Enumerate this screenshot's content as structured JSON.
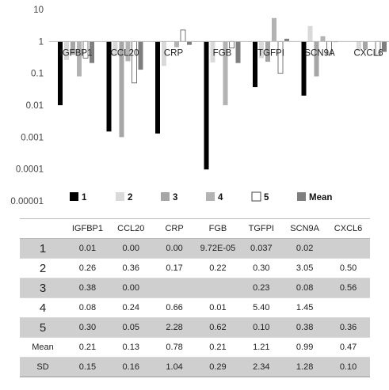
{
  "chart_data": {
    "type": "bar",
    "log_scale": true,
    "baseline": 1,
    "ylim": [
      1e-05,
      10
    ],
    "yticks": [
      "10",
      "1",
      "0.1",
      "0.01",
      "0.001",
      "0.0001",
      "0.00001"
    ],
    "categories": [
      "IGFBP1",
      "CCL20",
      "CRP",
      "FGB",
      "TGFPI",
      "SCN9A",
      "CXCL6"
    ],
    "series": [
      {
        "name": "1",
        "color": "#000000",
        "values": [
          0.01,
          0.0015,
          0.0013,
          9.7e-05,
          0.037,
          0.02,
          null
        ]
      },
      {
        "name": "2",
        "color": "#d9d9d9",
        "values": [
          0.26,
          0.36,
          0.17,
          0.22,
          0.3,
          3.05,
          0.5
        ]
      },
      {
        "name": "3",
        "color": "#a6a6a6",
        "values": [
          0.38,
          0.001,
          null,
          null,
          0.23,
          0.08,
          0.56
        ]
      },
      {
        "name": "4",
        "color": "#b3b3b3",
        "values": [
          0.08,
          0.24,
          0.66,
          0.01,
          5.4,
          1.45,
          null
        ]
      },
      {
        "name": "5",
        "color": "#ffffff",
        "values": [
          0.3,
          0.05,
          2.28,
          0.62,
          0.1,
          0.38,
          0.36
        ]
      },
      {
        "name": "Mean",
        "color": "#7f7f7f",
        "values": [
          0.21,
          0.13,
          0.78,
          0.21,
          1.21,
          0.99,
          0.47
        ]
      }
    ],
    "grid": false,
    "legend_position": "bottom"
  },
  "table": {
    "headers": [
      "",
      "IGFBP1",
      "CCL20",
      "CRP",
      "FGB",
      "TGFPI",
      "SCN9A",
      "CXCL6"
    ],
    "rows": [
      {
        "label": "1",
        "cells": [
          "0.01",
          "0.00",
          "0.00",
          "9.72E-05",
          "0.037",
          "0.02",
          ""
        ]
      },
      {
        "label": "2",
        "cells": [
          "0.26",
          "0.36",
          "0.17",
          "0.22",
          "0.30",
          "3.05",
          "0.50"
        ]
      },
      {
        "label": "3",
        "cells": [
          "0.38",
          "0.00",
          "",
          "",
          "0.23",
          "0.08",
          "0.56"
        ]
      },
      {
        "label": "4",
        "cells": [
          "0.08",
          "0.24",
          "0.66",
          "0.01",
          "5.40",
          "1.45",
          ""
        ]
      },
      {
        "label": "5",
        "cells": [
          "0.30",
          "0.05",
          "2.28",
          "0.62",
          "0.10",
          "0.38",
          "0.36"
        ]
      },
      {
        "label": "Mean",
        "cells": [
          "0.21",
          "0.13",
          "0.78",
          "0.21",
          "1.21",
          "0.99",
          "0.47"
        ]
      },
      {
        "label": "SD",
        "cells": [
          "0.15",
          "0.16",
          "1.04",
          "0.29",
          "2.34",
          "1.28",
          "0.10"
        ]
      }
    ]
  }
}
